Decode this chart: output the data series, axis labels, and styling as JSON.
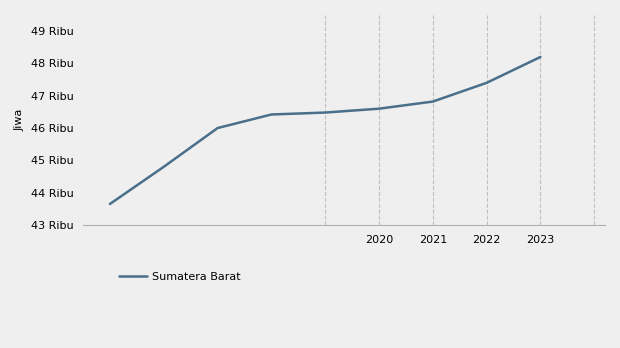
{
  "years": [
    2015,
    2016,
    2017,
    2018,
    2019,
    2020,
    2021,
    2022,
    2023
  ],
  "values": [
    43650,
    44800,
    46000,
    46420,
    46480,
    46600,
    46820,
    47400,
    48200
  ],
  "line_color": "#4a6f8a",
  "line_width": 1.8,
  "ylabel": "Jiwa",
  "ylim": [
    43000,
    49500
  ],
  "yticks": [
    43000,
    44000,
    45000,
    46000,
    47000,
    48000,
    49000
  ],
  "ytick_labels": [
    "43 Ribu",
    "44 Ribu",
    "45 Ribu",
    "46 Ribu",
    "47 Ribu",
    "48 Ribu",
    "49 Ribu"
  ],
  "xtick_positions": [
    2020,
    2021,
    2022,
    2023
  ],
  "xtick_labels": [
    "2020",
    "2021",
    "2022",
    "2023"
  ],
  "grid_positions": [
    2019,
    2020,
    2021,
    2022,
    2023,
    2024
  ],
  "grid_color": "#c0c0c0",
  "background_color": "#efefef",
  "legend_label": "Sumatera Barat",
  "font_size": 8,
  "xlim": [
    2014.5,
    2024.2
  ]
}
